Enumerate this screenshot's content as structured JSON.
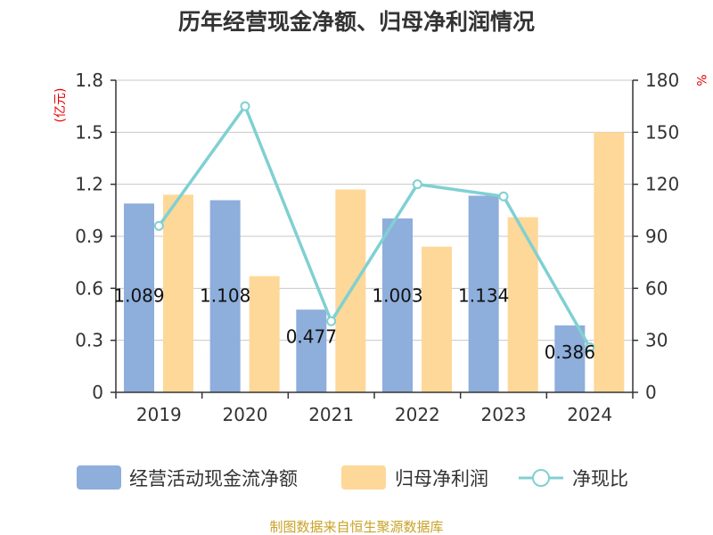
{
  "chart_data": {
    "type": "bar",
    "title": "历年经营现金净额、归母净利润情况",
    "categories": [
      "2019",
      "2020",
      "2021",
      "2022",
      "2023",
      "2024"
    ],
    "series": [
      {
        "name": "经营活动现金流净额",
        "kind": "bar",
        "axis": "left",
        "color": "#8eaedb",
        "values": [
          1.089,
          1.108,
          0.477,
          1.003,
          1.134,
          0.386
        ],
        "labels": [
          "1.089",
          "1.108",
          "0.477",
          "1.003",
          "1.134",
          "0.386"
        ]
      },
      {
        "name": "归母净利润",
        "kind": "bar",
        "axis": "left",
        "color": "#fed898",
        "values": [
          1.14,
          0.67,
          1.17,
          0.84,
          1.01,
          1.5
        ]
      },
      {
        "name": "净现比",
        "kind": "line",
        "axis": "right",
        "color": "#80d0d2",
        "values": [
          96,
          165,
          41,
          120,
          113,
          26
        ]
      }
    ],
    "yaxis_left": {
      "unit": "(亿元)",
      "ylim": [
        0,
        1.8
      ],
      "ticks": [
        "0",
        "0.3",
        "0.6",
        "0.9",
        "1.2",
        "1.5",
        "1.8"
      ]
    },
    "yaxis_right": {
      "unit": "%",
      "ylim": [
        0,
        180
      ],
      "ticks": [
        "0",
        "30",
        "60",
        "90",
        "120",
        "150",
        "180"
      ]
    },
    "grid": true,
    "legend_position": "bottom"
  },
  "source": {
    "text": "制图数据来自恒生聚源数据库",
    "color": "#c9a227"
  },
  "colors": {
    "unit": "#e60000",
    "axis": "#333333",
    "grid": "#c8c8c8"
  }
}
